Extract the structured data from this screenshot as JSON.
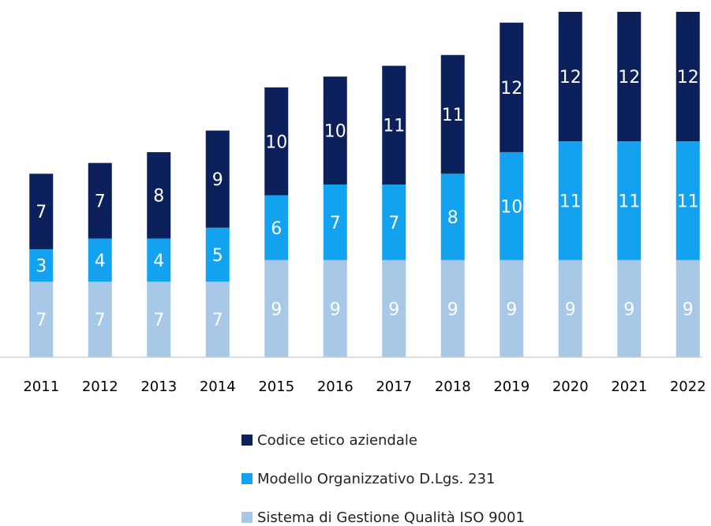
{
  "chart_data": {
    "type": "stacked_bar",
    "categories": [
      "2011",
      "2012",
      "2013",
      "2014",
      "2015",
      "2016",
      "2017",
      "2018",
      "2019",
      "2020",
      "2021",
      "2022"
    ],
    "series": [
      {
        "name": "Sistema di Gestione Qualità ISO 9001",
        "color": "#a7c8e6",
        "values": [
          7,
          7,
          7,
          7,
          9,
          9,
          9,
          9,
          9,
          9,
          9,
          9
        ]
      },
      {
        "name": "Modello Organizzativo D.Lgs. 231",
        "color": "#12a2ef",
        "values": [
          3,
          4,
          4,
          5,
          6,
          7,
          7,
          8,
          10,
          11,
          11,
          11
        ]
      },
      {
        "name": "Codice etico aziendale",
        "color": "#0c215c",
        "values": [
          7,
          7,
          8,
          9,
          10,
          10,
          11,
          11,
          12,
          12,
          12,
          12
        ]
      }
    ],
    "ylim": [
      0,
      32
    ],
    "legend": "bottom"
  }
}
